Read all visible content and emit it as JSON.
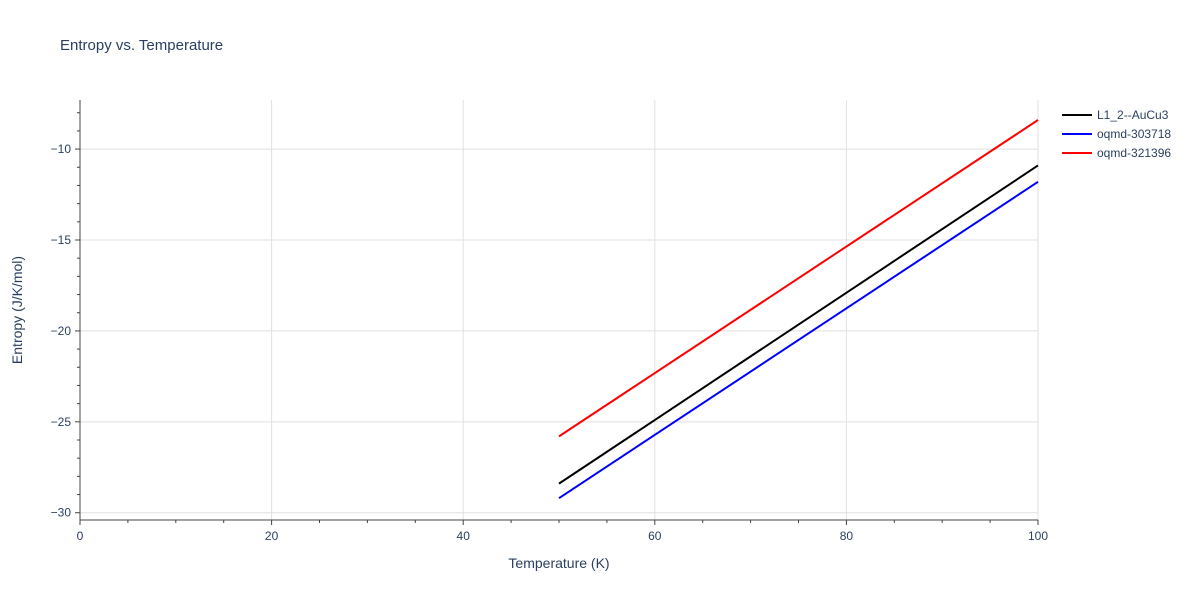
{
  "chart_data": {
    "type": "line",
    "title": "Entropy vs. Temperature",
    "xlabel": "Temperature (K)",
    "ylabel": "Entropy (J/K/mol)",
    "xlim": [
      0,
      100
    ],
    "ylim": [
      -30.4,
      -7.3
    ],
    "x_ticks": [
      0,
      20,
      40,
      60,
      80,
      100
    ],
    "y_ticks": [
      -30,
      -25,
      -20,
      -15,
      -10
    ],
    "x_tick_labels": [
      "0",
      "20",
      "40",
      "60",
      "80",
      "100"
    ],
    "y_tick_labels": [
      "−30",
      "−25",
      "−20",
      "−15",
      "−10"
    ],
    "grid": true,
    "legend_position": "top-right",
    "series": [
      {
        "name": "L1_2--AuCu3",
        "color": "#000000",
        "x": [
          50,
          100
        ],
        "y": [
          -28.4,
          -10.9
        ]
      },
      {
        "name": "oqmd-303718",
        "color": "#0000ff",
        "x": [
          50,
          100
        ],
        "y": [
          -29.2,
          -11.8
        ]
      },
      {
        "name": "oqmd-321396",
        "color": "#ff0000",
        "x": [
          50,
          100
        ],
        "y": [
          -25.8,
          -8.4
        ]
      }
    ]
  }
}
